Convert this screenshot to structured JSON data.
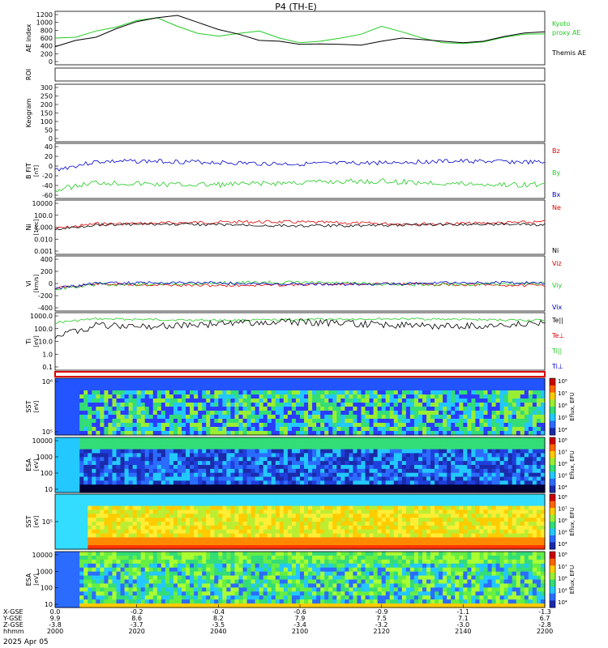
{
  "title": "P4 (TH-E)",
  "footer_date": "2025 Apr 05",
  "colors": {
    "green": "#22cc22",
    "black": "#000000",
    "red": "#dd0000",
    "blue": "#0000cc"
  },
  "panels": [
    {
      "id": "ae",
      "ylabel": "AE index",
      "yticks": [
        "1200",
        "1000",
        "800",
        "600",
        "400",
        "200",
        "0"
      ],
      "legend": [
        {
          "text": "Kyoto",
          "color": "green"
        },
        {
          "text": "proxy AE",
          "color": "green"
        },
        {
          "text": "Themis AE",
          "color": "black"
        }
      ]
    },
    {
      "id": "roi",
      "ylabel": "ROI",
      "yticks": []
    },
    {
      "id": "keogram",
      "ylabel": "Keogram",
      "yticks": [
        "300",
        "250",
        "200",
        "150",
        "100",
        "50",
        "0"
      ]
    },
    {
      "id": "bfgm",
      "ylabel": "B FIT",
      "yunit": "[nT]",
      "yticks": [
        "40",
        "20",
        "0",
        "-20",
        "-40",
        "-60"
      ],
      "legend": [
        {
          "text": "Bz",
          "color": "red"
        },
        {
          "text": "By",
          "color": "green"
        },
        {
          "text": "Bx",
          "color": "blue"
        }
      ]
    },
    {
      "id": "ni",
      "ylabel": "Ni",
      "yunit": "[1/cc]",
      "yticks": [
        "10000",
        "100.0",
        "1.000",
        "0.010",
        "0.001"
      ],
      "legend": [
        {
          "text": "Ne",
          "color": "red"
        },
        {
          "text": "Ni",
          "color": "black"
        }
      ]
    },
    {
      "id": "vi",
      "ylabel": "Vi",
      "yunit": "[km/s]",
      "yticks": [
        "400",
        "200",
        "0",
        "-200",
        "-400"
      ],
      "legend": [
        {
          "text": "Viz",
          "color": "red"
        },
        {
          "text": "Viy",
          "color": "green"
        },
        {
          "text": "Vix",
          "color": "blue"
        }
      ]
    },
    {
      "id": "ti",
      "ylabel": "Ti",
      "yunit": "[eV]",
      "yticks": [
        "1000.0",
        "100.0",
        "10.0",
        "1.0",
        "0.1"
      ],
      "legend": [
        {
          "text": "Te||",
          "color": "black"
        },
        {
          "text": "Te⊥",
          "color": "red"
        },
        {
          "text": "Ti||",
          "color": "green"
        },
        {
          "text": "Ti⊥",
          "color": "blue"
        }
      ]
    },
    {
      "id": "sst_i",
      "ylabel": "SST",
      "yunit": "[eV]",
      "yticks": [
        "10⁶",
        "10⁵"
      ],
      "cbar": {
        "ticks": [
          "10⁸",
          "10⁷",
          "10⁶",
          "10⁵",
          "10⁴"
        ],
        "label": "Eflux, EFU"
      }
    },
    {
      "id": "esa_i",
      "ylabel": "ESA",
      "yunit": "[eV]",
      "yticks": [
        "10000",
        "1000",
        "100",
        "10"
      ],
      "cbar": {
        "ticks": [
          "10⁸",
          "10⁷",
          "10⁶",
          "10⁵",
          "10⁴"
        ],
        "label": "Eflux, EFU"
      }
    },
    {
      "id": "sst_e",
      "ylabel": "SST",
      "yunit": "[eV]",
      "yticks": [
        "10⁵"
      ],
      "cbar": {
        "ticks": [
          "10⁸",
          "10⁷",
          "10⁶",
          "10⁵",
          "10⁴"
        ],
        "label": "Eflux, EFU"
      }
    },
    {
      "id": "esa_e",
      "ylabel": "ESA",
      "yunit": "[eV]",
      "yticks": [
        "10000",
        "1000",
        "100",
        "10"
      ],
      "cbar": {
        "ticks": [
          "10⁸",
          "10⁷",
          "10⁶",
          "10⁵",
          "10⁴"
        ],
        "label": "Eflux, EFU"
      }
    }
  ],
  "xaxis": {
    "row_labels": [
      "X-GSE",
      "Y-GSE",
      "Z-GSE",
      "hhmm"
    ],
    "columns": [
      [
        "0.0",
        "9.9",
        "-3.8",
        "2000"
      ],
      [
        "-0.2",
        "8.6",
        "-3.7",
        "2020"
      ],
      [
        "-0.4",
        "8.2",
        "-3.5",
        "2040"
      ],
      [
        "-0.6",
        "7.9",
        "-3.4",
        "2100"
      ],
      [
        "-0.9",
        "7.5",
        "-3.2",
        "2120"
      ],
      [
        "-1.1",
        "7.1",
        "-3.0",
        "2140"
      ],
      [
        "-1.3",
        "6.7",
        "-2.8",
        "2200"
      ]
    ]
  },
  "chart_data": {
    "type": "line",
    "title": "P4 (TH-E)",
    "x_label": "hhmm",
    "x": [
      2000,
      2005,
      2010,
      2015,
      2020,
      2025,
      2030,
      2035,
      2040,
      2045,
      2050,
      2055,
      2100,
      2105,
      2110,
      2115,
      2120,
      2125,
      2130,
      2135,
      2140,
      2145,
      2150,
      2155,
      2200
    ],
    "series": [
      {
        "name": "Kyoto proxy AE",
        "values": [
          600,
          620,
          780,
          880,
          1050,
          1120,
          900,
          720,
          650,
          720,
          780,
          600,
          480,
          520,
          600,
          700,
          900,
          760,
          600,
          480,
          460,
          500,
          620,
          700,
          710
        ]
      },
      {
        "name": "Themis AE",
        "values": [
          380,
          540,
          620,
          840,
          1020,
          1120,
          1180,
          1000,
          820,
          700,
          540,
          520,
          440,
          450,
          440,
          420,
          520,
          600,
          560,
          520,
          480,
          520,
          640,
          730,
          760
        ]
      }
    ],
    "ylim": [
      0,
      1200
    ]
  }
}
